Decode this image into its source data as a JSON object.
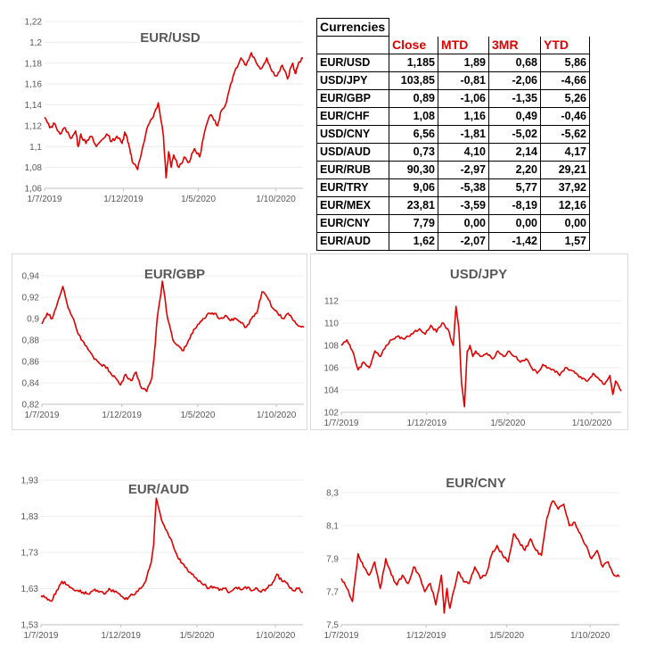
{
  "colors": {
    "line": "#e00000",
    "header_red": "#e00000",
    "tick_text": "#595959"
  },
  "table": {
    "title": "Currencies",
    "headers": [
      "Close",
      "MTD",
      "3MR",
      "YTD"
    ],
    "rows": [
      {
        "pair": "EUR/USD",
        "close": "1,185",
        "mtd": "1,89",
        "r3m": "0,68",
        "ytd": "5,86"
      },
      {
        "pair": "USD/JPY",
        "close": "103,85",
        "mtd": "-0,81",
        "r3m": "-2,06",
        "ytd": "-4,66"
      },
      {
        "pair": "EUR/GBP",
        "close": "0,89",
        "mtd": "-1,06",
        "r3m": "-1,35",
        "ytd": "5,26"
      },
      {
        "pair": "EUR/CHF",
        "close": "1,08",
        "mtd": "1,16",
        "r3m": "0,49",
        "ytd": "-0,46"
      },
      {
        "pair": "USD/CNY",
        "close": "6,56",
        "mtd": "-1,81",
        "r3m": "-5,02",
        "ytd": "-5,62"
      },
      {
        "pair": "USD/AUD",
        "close": "0,73",
        "mtd": "4,10",
        "r3m": "2,14",
        "ytd": "4,17"
      },
      {
        "pair": "EUR/RUB",
        "close": "90,30",
        "mtd": "-2,97",
        "r3m": "2,20",
        "ytd": "29,21"
      },
      {
        "pair": "EUR/TRY",
        "close": "9,06",
        "mtd": "-5,38",
        "r3m": "5,77",
        "ytd": "37,92"
      },
      {
        "pair": "EUR/MEX",
        "close": "23,81",
        "mtd": "-3,59",
        "r3m": "-8,19",
        "ytd": "12,16"
      },
      {
        "pair": "EUR/CNY",
        "close": "7,79",
        "mtd": "0,00",
        "r3m": "0,00",
        "ytd": "0,00"
      },
      {
        "pair": "EUR/AUD",
        "close": "1,62",
        "mtd": "-2,07",
        "r3m": "-1,42",
        "ytd": "1,57"
      }
    ]
  },
  "chart_data": [
    {
      "id": "eurusd",
      "type": "line",
      "title": "EUR/USD",
      "ylim": [
        1.06,
        1.22
      ],
      "yticks": [
        "1,06",
        "1,08",
        "1,1",
        "1,12",
        "1,14",
        "1,16",
        "1,18",
        "1,2",
        "1,22"
      ],
      "xticks": [
        "1/7/2019",
        "1/12/2019",
        "1/5/2020",
        "1/10/2020"
      ],
      "series": [
        {
          "name": "EUR/USD",
          "x": [
            0,
            2,
            4,
            6,
            8,
            10,
            12,
            13,
            14,
            16,
            18,
            20,
            22,
            24,
            26,
            28,
            30,
            31,
            32,
            33,
            34,
            36,
            38,
            40,
            42,
            44,
            46,
            47,
            48,
            49,
            50,
            52,
            54,
            56,
            58,
            60,
            62,
            64,
            66,
            67,
            68,
            70,
            72,
            74,
            76,
            78,
            80,
            82,
            84,
            86,
            88,
            90,
            92,
            94,
            96,
            97,
            98,
            100
          ],
          "values": [
            1.128,
            1.118,
            1.122,
            1.112,
            1.118,
            1.108,
            1.115,
            1.1,
            1.112,
            1.103,
            1.11,
            1.1,
            1.106,
            1.112,
            1.105,
            1.11,
            1.103,
            1.114,
            1.108,
            1.098,
            1.085,
            1.078,
            1.1,
            1.12,
            1.128,
            1.142,
            1.11,
            1.07,
            1.095,
            1.08,
            1.092,
            1.08,
            1.09,
            1.085,
            1.098,
            1.09,
            1.115,
            1.13,
            1.125,
            1.12,
            1.132,
            1.14,
            1.16,
            1.175,
            1.185,
            1.178,
            1.19,
            1.18,
            1.175,
            1.185,
            1.172,
            1.168,
            1.178,
            1.165,
            1.18,
            1.17,
            1.178,
            1.185
          ]
        }
      ]
    },
    {
      "id": "eurgbp",
      "type": "line",
      "title": "EUR/GBP",
      "ylim": [
        0.82,
        0.94
      ],
      "yticks": [
        "0,82",
        "0,84",
        "0,86",
        "0,88",
        "0,9",
        "0,92",
        "0,94"
      ],
      "xticks": [
        "1/7/2019",
        "1/12/2019",
        "1/5/2020",
        "1/10/2020"
      ],
      "series": [
        {
          "name": "EUR/GBP",
          "x": [
            0,
            2,
            4,
            6,
            8,
            10,
            12,
            14,
            16,
            18,
            20,
            22,
            24,
            26,
            28,
            30,
            32,
            34,
            36,
            38,
            40,
            42,
            43,
            44,
            46,
            48,
            50,
            52,
            54,
            56,
            58,
            60,
            62,
            64,
            66,
            68,
            70,
            72,
            74,
            76,
            78,
            80,
            82,
            84,
            86,
            88,
            90,
            92,
            94,
            96,
            98,
            100
          ],
          "values": [
            0.895,
            0.905,
            0.9,
            0.915,
            0.93,
            0.91,
            0.9,
            0.885,
            0.878,
            0.87,
            0.862,
            0.858,
            0.856,
            0.85,
            0.845,
            0.838,
            0.848,
            0.842,
            0.85,
            0.835,
            0.832,
            0.845,
            0.87,
            0.9,
            0.935,
            0.9,
            0.88,
            0.875,
            0.87,
            0.88,
            0.89,
            0.895,
            0.9,
            0.905,
            0.905,
            0.9,
            0.903,
            0.898,
            0.9,
            0.896,
            0.892,
            0.9,
            0.905,
            0.925,
            0.92,
            0.91,
            0.905,
            0.9,
            0.905,
            0.898,
            0.893,
            0.892
          ]
        }
      ]
    },
    {
      "id": "usdjpy",
      "type": "line",
      "title": "USD/JPY",
      "ylim": [
        102,
        112
      ],
      "yticks": [
        "102",
        "104",
        "106",
        "108",
        "110",
        "112"
      ],
      "xticks": [
        "1/7/2019",
        "1/12/2019",
        "1/5/2020",
        "1/10/2020"
      ],
      "series": [
        {
          "name": "USD/JPY",
          "x": [
            0,
            2,
            4,
            6,
            8,
            10,
            12,
            14,
            16,
            18,
            20,
            22,
            24,
            26,
            28,
            30,
            32,
            34,
            36,
            38,
            40,
            41,
            42,
            43,
            44,
            45,
            46,
            47,
            48,
            50,
            52,
            54,
            56,
            58,
            60,
            62,
            64,
            66,
            68,
            70,
            72,
            74,
            76,
            78,
            80,
            82,
            84,
            86,
            88,
            90,
            92,
            94,
            96,
            97,
            98,
            100
          ],
          "values": [
            108.0,
            108.5,
            107.5,
            105.8,
            106.5,
            106.0,
            107.5,
            107.0,
            108.0,
            108.5,
            108.8,
            108.6,
            108.8,
            109.2,
            109.5,
            109.0,
            109.8,
            109.2,
            110.0,
            109.5,
            108.0,
            111.5,
            109.5,
            104.5,
            102.5,
            107.5,
            108.0,
            107.0,
            107.5,
            107.0,
            107.3,
            106.8,
            107.5,
            107.0,
            107.5,
            107.0,
            106.5,
            106.8,
            106.0,
            105.5,
            106.3,
            106.0,
            105.8,
            105.3,
            106.0,
            105.8,
            105.5,
            105.0,
            104.8,
            105.5,
            105.0,
            104.5,
            105.3,
            103.6,
            104.8,
            103.9
          ]
        }
      ]
    },
    {
      "id": "euraud",
      "type": "line",
      "title": "EUR/AUD",
      "ylim": [
        1.53,
        1.93
      ],
      "yticks": [
        "1,53",
        "1,63",
        "1,73",
        "1,83",
        "1,93"
      ],
      "xticks": [
        "1/7/2019",
        "1/12/2019",
        "1/5/2020",
        "1/10/2020"
      ],
      "series": [
        {
          "name": "EUR/AUD",
          "x": [
            0,
            2,
            4,
            6,
            8,
            10,
            12,
            14,
            16,
            18,
            20,
            22,
            24,
            26,
            28,
            30,
            32,
            34,
            36,
            38,
            40,
            41,
            42,
            43,
            44,
            46,
            48,
            50,
            52,
            54,
            56,
            58,
            60,
            62,
            64,
            66,
            68,
            70,
            72,
            74,
            76,
            78,
            80,
            82,
            84,
            86,
            88,
            90,
            92,
            94,
            96,
            98,
            100
          ],
          "values": [
            1.61,
            1.605,
            1.595,
            1.625,
            1.65,
            1.64,
            1.63,
            1.625,
            1.62,
            1.615,
            1.625,
            1.62,
            1.615,
            1.63,
            1.62,
            1.615,
            1.6,
            1.61,
            1.615,
            1.63,
            1.65,
            1.68,
            1.7,
            1.75,
            1.88,
            1.82,
            1.79,
            1.76,
            1.72,
            1.7,
            1.68,
            1.67,
            1.65,
            1.64,
            1.63,
            1.635,
            1.625,
            1.63,
            1.62,
            1.632,
            1.628,
            1.635,
            1.625,
            1.632,
            1.62,
            1.63,
            1.64,
            1.67,
            1.65,
            1.645,
            1.625,
            1.63,
            1.62
          ]
        }
      ]
    },
    {
      "id": "eurcny",
      "type": "line",
      "title": "EUR/CNY",
      "ylim": [
        7.5,
        8.3
      ],
      "yticks": [
        "7,5",
        "7,7",
        "7,9",
        "8,1",
        "8,3"
      ],
      "xticks": [
        "1/7/2019",
        "1/12/2019",
        "1/5/2020",
        "1/10/2020"
      ],
      "series": [
        {
          "name": "EUR/CNY",
          "x": [
            0,
            2,
            4,
            6,
            8,
            10,
            12,
            14,
            16,
            18,
            20,
            22,
            24,
            26,
            28,
            30,
            32,
            34,
            36,
            37,
            38,
            39,
            40,
            42,
            44,
            46,
            48,
            50,
            52,
            54,
            56,
            58,
            60,
            62,
            64,
            66,
            68,
            70,
            72,
            74,
            76,
            78,
            80,
            82,
            84,
            86,
            88,
            90,
            92,
            94,
            96,
            98,
            100
          ],
          "values": [
            7.78,
            7.72,
            7.64,
            7.93,
            7.85,
            7.8,
            7.88,
            7.72,
            7.9,
            7.8,
            7.74,
            7.8,
            7.75,
            7.85,
            7.8,
            7.7,
            7.75,
            7.62,
            7.8,
            7.57,
            7.72,
            7.6,
            7.68,
            7.82,
            7.76,
            7.75,
            7.85,
            7.78,
            7.8,
            7.92,
            7.98,
            7.92,
            7.88,
            8.05,
            8.0,
            7.95,
            8.02,
            7.95,
            7.92,
            8.15,
            8.25,
            8.2,
            8.23,
            8.1,
            8.12,
            8.05,
            7.98,
            7.9,
            7.95,
            7.85,
            7.88,
            7.8,
            7.79
          ]
        }
      ]
    }
  ]
}
